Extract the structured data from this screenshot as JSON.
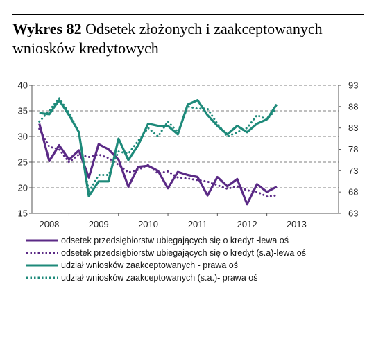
{
  "title": {
    "prefix": "Wykres 82",
    "text": "Odsetek złożonych i zaakceptowanych wniosków kredytowych"
  },
  "chart_data": {
    "type": "line",
    "x_tick_labels": [
      "2008",
      "2009",
      "2010",
      "2011",
      "2012",
      "2013"
    ],
    "left_axis": {
      "ylim": [
        15,
        40
      ],
      "ticks": [
        15,
        20,
        25,
        30,
        35,
        40
      ]
    },
    "right_axis": {
      "ylim": [
        63,
        93
      ],
      "ticks": [
        63,
        68,
        73,
        78,
        83,
        88,
        93
      ]
    },
    "grid": "horizontal dashed",
    "legend_position": "bottom",
    "x": [
      2007.9,
      2008.1,
      2008.3,
      2008.5,
      2008.7,
      2008.9,
      2009.1,
      2009.3,
      2009.5,
      2009.7,
      2009.9,
      2010.1,
      2010.3,
      2010.5,
      2010.7,
      2010.9,
      2011.1,
      2011.3,
      2011.5,
      2011.7,
      2011.9,
      2012.1,
      2012.3,
      2012.5,
      2012.7,
      2012.9,
      2013.1,
      2013.3,
      2013.5,
      2013.7
    ],
    "series": [
      {
        "name": "odsetek przedsiębiorstw ubiegających się o kredyt -lewa oś",
        "axis": "left",
        "style": "solid",
        "color": "#5b2a86",
        "values": [
          32.5,
          25.2,
          28.3,
          25.5,
          27.3,
          22.0,
          28.5,
          27.5,
          25.5,
          20.2,
          24.1,
          24.3,
          23.3,
          19.9,
          23.1,
          22.5,
          22.1,
          18.5,
          22.1,
          20.3,
          21.7,
          16.8,
          20.7,
          19.2,
          20.2,
          null,
          null,
          null,
          null,
          null
        ]
      },
      {
        "name": "odsetek przedsiębiorstw ubiegających się o kredyt (s.a)-lewa oś",
        "axis": "left",
        "style": "dotted",
        "color": "#5b2a86",
        "values": [
          31.5,
          28.0,
          27.5,
          25.0,
          26.5,
          26.0,
          26.5,
          25.8,
          24.5,
          23.0,
          23.5,
          24.5,
          22.8,
          23.2,
          22.0,
          21.8,
          21.5,
          21.2,
          20.5,
          19.8,
          20.3,
          19.5,
          19.2,
          18.3,
          18.5,
          null,
          null,
          null,
          null,
          null
        ]
      },
      {
        "name": "udział wniosków zaakceptowanych - prawa oś",
        "axis": "right",
        "style": "solid",
        "color": "#1e8a7a",
        "values": [
          86.5,
          86.2,
          89.5,
          86.0,
          82.0,
          67.0,
          70.5,
          70.5,
          80.5,
          75.5,
          79.0,
          84.0,
          83.5,
          83.5,
          81.5,
          88.5,
          89.5,
          86.0,
          83.5,
          81.5,
          83.5,
          82.0,
          84.0,
          85.0,
          88.5,
          null,
          null,
          null,
          null,
          null
        ]
      },
      {
        "name": "udział wniosków zaakceptowanych (s.a.)- prawa oś",
        "axis": "right",
        "style": "dotted",
        "color": "#1e8a7a",
        "values": [
          84.5,
          87.0,
          90.0,
          86.5,
          82.0,
          68.0,
          72.0,
          72.0,
          77.5,
          77.0,
          80.0,
          83.0,
          81.0,
          84.5,
          82.0,
          88.0,
          87.5,
          87.5,
          84.0,
          81.0,
          82.0,
          83.0,
          86.0,
          85.0,
          87.5,
          null,
          null,
          null,
          null,
          null
        ]
      }
    ]
  }
}
